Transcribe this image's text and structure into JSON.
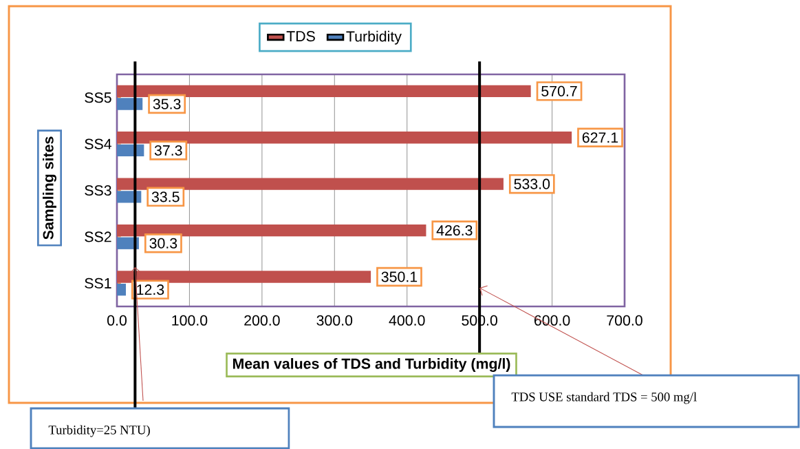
{
  "chart_data": {
    "type": "bar",
    "orientation": "horizontal",
    "categories": [
      "SS5",
      "SS4",
      "SS3",
      "SS2",
      "SS1"
    ],
    "series": [
      {
        "name": "TDS",
        "color": "#c0504d",
        "values": [
          570.7,
          627.1,
          533.0,
          426.3,
          350.1
        ],
        "value_labels": [
          "570.7",
          "627.1",
          "533.0",
          "426.3",
          "350.1"
        ]
      },
      {
        "name": "Turbidity",
        "color": "#4f81bd",
        "values": [
          35.3,
          37.3,
          33.5,
          30.3,
          12.3
        ],
        "value_labels": [
          "35.3",
          "37.3",
          "33.5",
          "30.3",
          "12.3"
        ]
      }
    ],
    "xlabel": "Mean values of TDS and Turbidity (mg/l)",
    "ylabel": "Sampling sites",
    "xlim": [
      0,
      700
    ],
    "xticks": [
      {
        "value": 0,
        "label": "0.0"
      },
      {
        "value": 100,
        "label": "100.0"
      },
      {
        "value": 200,
        "label": "200.0"
      },
      {
        "value": 300,
        "label": "300.0"
      },
      {
        "value": 400,
        "label": "400.0"
      },
      {
        "value": 500,
        "label": "500.0"
      },
      {
        "value": 600,
        "label": "600.0"
      },
      {
        "value": 700,
        "label": "700.0"
      }
    ],
    "grid": "x",
    "legend": "top",
    "ref_lines": [
      {
        "axis": "x",
        "value": 500,
        "label": "TDS USE standard TDS = 500 mg/l",
        "color": "#000000"
      },
      {
        "axis": "x",
        "value": 25,
        "label": "Turbidity=25 NTU)",
        "color": "#000000"
      }
    ]
  }
}
